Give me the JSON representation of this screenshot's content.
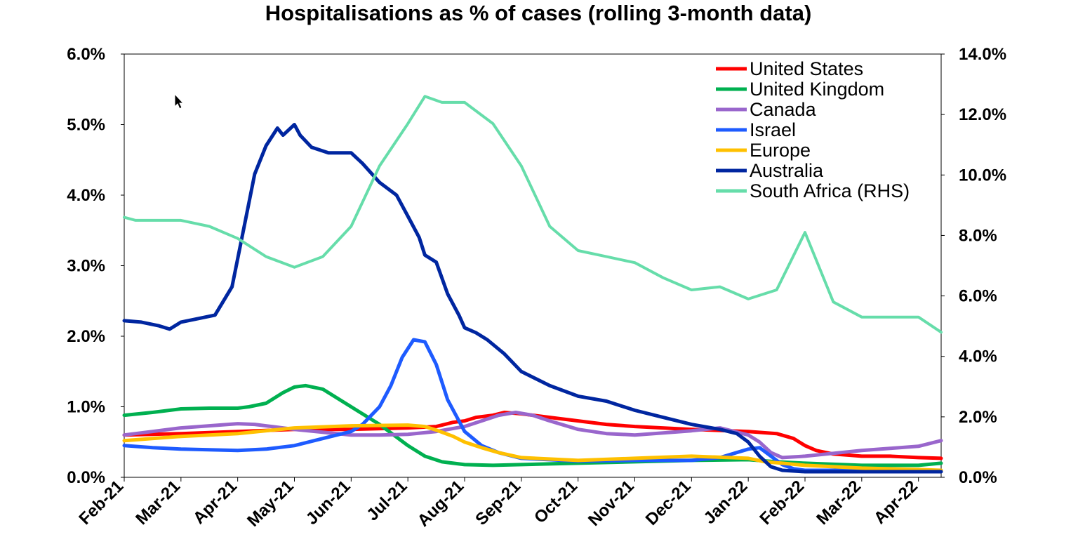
{
  "chart_data": {
    "type": "line",
    "title": "Hospitalisations as % of cases (rolling 3-month data)",
    "x_ticks": [
      "Feb-21",
      "Mar-21",
      "Apr-21",
      "May-21",
      "Jun-21",
      "Jul-21",
      "Aug-21",
      "Sep-21",
      "Oct-21",
      "Nov-21",
      "Dec-21",
      "Jan-22",
      "Feb-22",
      "Mar-22",
      "Apr-22"
    ],
    "x_range": [
      0,
      14.4
    ],
    "y_left": {
      "ticks": [
        "0.0%",
        "1.0%",
        "2.0%",
        "3.0%",
        "4.0%",
        "5.0%",
        "6.0%"
      ],
      "ylim": [
        0,
        6
      ]
    },
    "y_right": {
      "ticks": [
        "0.0%",
        "2.0%",
        "4.0%",
        "6.0%",
        "8.0%",
        "10.0%",
        "12.0%",
        "14.0%"
      ],
      "ylim": [
        0,
        14
      ]
    },
    "legend_position": "top-right",
    "series": [
      {
        "name": "United States",
        "color": "#ff0000",
        "axis": "left",
        "x": [
          0,
          1,
          2,
          3,
          4,
          5,
          5.5,
          5.8,
          6,
          6.2,
          6.5,
          6.7,
          7,
          7.5,
          8,
          8.5,
          9,
          10,
          11,
          11.5,
          11.8,
          12,
          12.2,
          12.5,
          13,
          13.5,
          14,
          14.4
        ],
        "y": [
          0.6,
          0.62,
          0.65,
          0.68,
          0.68,
          0.7,
          0.72,
          0.78,
          0.8,
          0.85,
          0.88,
          0.92,
          0.9,
          0.85,
          0.8,
          0.75,
          0.72,
          0.68,
          0.65,
          0.62,
          0.55,
          0.45,
          0.38,
          0.33,
          0.3,
          0.3,
          0.28,
          0.27
        ]
      },
      {
        "name": "United Kingdom",
        "color": "#00b050",
        "axis": "left",
        "x": [
          0,
          0.5,
          1,
          1.5,
          2,
          2.2,
          2.5,
          2.8,
          3,
          3.2,
          3.5,
          4,
          4.5,
          5,
          5.3,
          5.6,
          6,
          6.5,
          7,
          8,
          9,
          10,
          11,
          11.5,
          12,
          13,
          14,
          14.4
        ],
        "y": [
          0.88,
          0.92,
          0.97,
          0.98,
          0.98,
          1.0,
          1.05,
          1.2,
          1.28,
          1.3,
          1.25,
          1.0,
          0.75,
          0.45,
          0.3,
          0.22,
          0.18,
          0.17,
          0.18,
          0.2,
          0.22,
          0.24,
          0.25,
          0.22,
          0.2,
          0.17,
          0.17,
          0.2
        ]
      },
      {
        "name": "Canada",
        "color": "#9966cc",
        "axis": "left",
        "x": [
          0,
          0.5,
          1,
          1.5,
          2,
          2.3,
          2.6,
          3,
          3.5,
          4,
          4.5,
          5,
          5.5,
          6,
          6.3,
          6.6,
          6.9,
          7.2,
          7.5,
          8,
          8.5,
          9,
          10,
          10.5,
          11,
          11.2,
          11.4,
          11.6,
          12,
          12.5,
          13,
          13.5,
          14,
          14.4
        ],
        "y": [
          0.6,
          0.65,
          0.7,
          0.73,
          0.76,
          0.75,
          0.72,
          0.68,
          0.64,
          0.6,
          0.6,
          0.61,
          0.65,
          0.72,
          0.8,
          0.88,
          0.92,
          0.88,
          0.8,
          0.68,
          0.62,
          0.6,
          0.66,
          0.7,
          0.6,
          0.5,
          0.35,
          0.28,
          0.3,
          0.34,
          0.38,
          0.41,
          0.44,
          0.52
        ]
      },
      {
        "name": "Israel",
        "color": "#1e5bff",
        "axis": "left",
        "x": [
          0,
          0.5,
          1,
          2,
          2.5,
          3,
          3.5,
          4,
          4.2,
          4.5,
          4.7,
          4.9,
          5.1,
          5.3,
          5.5,
          5.7,
          6,
          6.3,
          6.6,
          7,
          8,
          9,
          10,
          10.5,
          11,
          11.2,
          11.4,
          11.6,
          11.8,
          12,
          13,
          14,
          14.4
        ],
        "y": [
          0.45,
          0.42,
          0.4,
          0.38,
          0.4,
          0.45,
          0.55,
          0.65,
          0.75,
          1.0,
          1.3,
          1.7,
          1.95,
          1.92,
          1.6,
          1.1,
          0.65,
          0.45,
          0.35,
          0.27,
          0.23,
          0.24,
          0.24,
          0.28,
          0.4,
          0.42,
          0.3,
          0.18,
          0.12,
          0.1,
          0.1,
          0.09,
          0.09
        ]
      },
      {
        "name": "Europe",
        "color": "#ffc000",
        "axis": "left",
        "x": [
          0,
          1,
          2,
          3,
          4,
          5,
          5.3,
          5.5,
          5.8,
          6,
          6.3,
          6.6,
          7,
          8,
          9,
          10,
          11,
          11.3,
          11.6,
          12,
          13,
          14,
          14.4
        ],
        "y": [
          0.52,
          0.58,
          0.62,
          0.7,
          0.73,
          0.74,
          0.72,
          0.67,
          0.58,
          0.5,
          0.42,
          0.35,
          0.28,
          0.24,
          0.27,
          0.3,
          0.27,
          0.22,
          0.2,
          0.17,
          0.13,
          0.11,
          0.1
        ]
      },
      {
        "name": "Australia",
        "color": "#0026a0",
        "axis": "left",
        "x": [
          0,
          0.3,
          0.6,
          0.8,
          1,
          1.3,
          1.6,
          1.9,
          2.1,
          2.3,
          2.5,
          2.7,
          2.8,
          3,
          3.1,
          3.3,
          3.6,
          4,
          4.2,
          4.5,
          4.8,
          5,
          5.2,
          5.3,
          5.5,
          5.7,
          5.9,
          6,
          6.2,
          6.4,
          6.7,
          7,
          7.5,
          8,
          8.5,
          9,
          9.5,
          10,
          10.5,
          10.8,
          11,
          11.2,
          11.4,
          11.6,
          12,
          13,
          14,
          14.4
        ],
        "y": [
          2.22,
          2.2,
          2.15,
          2.1,
          2.2,
          2.25,
          2.3,
          2.7,
          3.5,
          4.3,
          4.7,
          4.95,
          4.85,
          5.0,
          4.85,
          4.68,
          4.6,
          4.6,
          4.45,
          4.18,
          4.0,
          3.7,
          3.4,
          3.15,
          3.05,
          2.6,
          2.3,
          2.12,
          2.05,
          1.95,
          1.75,
          1.5,
          1.3,
          1.15,
          1.08,
          0.95,
          0.85,
          0.75,
          0.68,
          0.62,
          0.5,
          0.3,
          0.15,
          0.1,
          0.08,
          0.08,
          0.08,
          0.08
        ]
      },
      {
        "name": "South Africa (RHS)",
        "color": "#66ddaa",
        "axis": "right",
        "x": [
          0,
          0.2,
          0.6,
          1,
          1.5,
          2,
          2.5,
          3,
          3.5,
          4,
          4.5,
          5,
          5.3,
          5.6,
          6,
          6.5,
          7,
          7.5,
          8,
          8.5,
          9,
          9.5,
          10,
          10.5,
          11,
          11.5,
          12,
          12.5,
          13,
          13.5,
          14,
          14.4
        ],
        "y": [
          8.6,
          8.5,
          8.5,
          8.5,
          8.3,
          7.9,
          7.3,
          6.95,
          7.3,
          8.3,
          10.3,
          11.7,
          12.6,
          12.4,
          12.4,
          11.7,
          10.3,
          8.3,
          7.5,
          7.3,
          7.1,
          6.6,
          6.2,
          6.3,
          5.9,
          6.2,
          8.1,
          5.8,
          5.3,
          5.3,
          5.3,
          4.8
        ]
      }
    ]
  }
}
